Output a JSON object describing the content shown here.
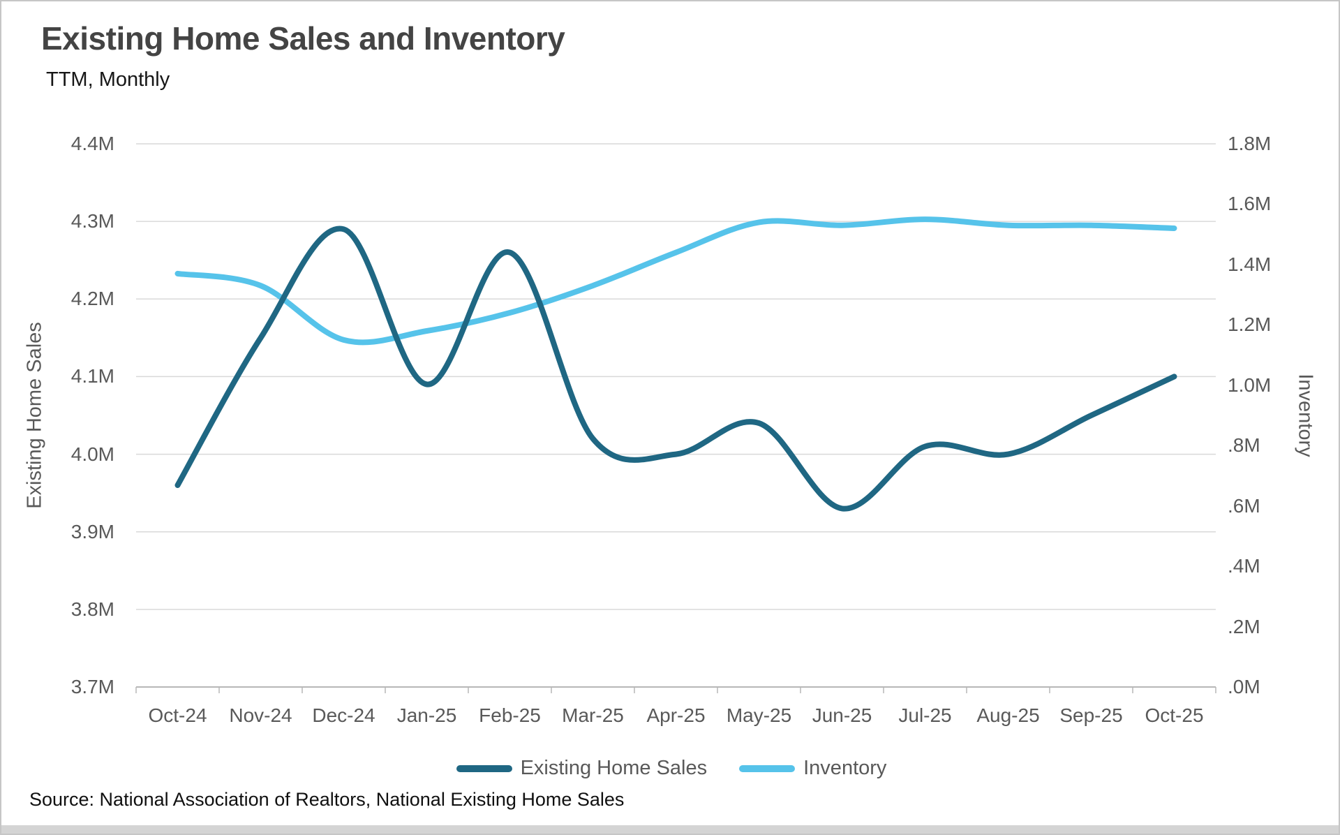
{
  "header": {
    "title": "Existing Home Sales and Inventory",
    "subtitle": "TTM, Monthly"
  },
  "chart_data": {
    "type": "line",
    "smooth": true,
    "grid": true,
    "legend_position": "bottom",
    "categories": [
      "Oct-24",
      "Nov-24",
      "Dec-24",
      "Jan-25",
      "Feb-25",
      "Mar-25",
      "Apr-25",
      "May-25",
      "Jun-25",
      "Jul-25",
      "Aug-25",
      "Sep-25",
      "Oct-25"
    ],
    "series": [
      {
        "name": "Existing Home Sales",
        "axis": "left",
        "color": "#1f6783",
        "values": [
          3.96,
          4.15,
          4.29,
          4.09,
          4.26,
          4.02,
          4.0,
          4.04,
          3.93,
          4.01,
          4.0,
          4.05,
          4.1
        ]
      },
      {
        "name": "Inventory",
        "axis": "right",
        "color": "#56c3ea",
        "values": [
          1.37,
          1.33,
          1.15,
          1.18,
          1.24,
          1.33,
          1.44,
          1.54,
          1.53,
          1.55,
          1.53,
          1.53,
          1.52
        ]
      }
    ],
    "left_axis": {
      "title": "Existing Home Sales",
      "min": 3.7,
      "max": 4.4,
      "tick_labels": [
        "4.4M",
        "4.3M",
        "4.2M",
        "4.1M",
        "4.0M",
        "3.9M",
        "3.8M",
        "3.7M"
      ]
    },
    "right_axis": {
      "title": "Inventory",
      "min": 0.0,
      "max": 1.8,
      "tick_labels": [
        "1.8M",
        "1.6M",
        "1.4M",
        "1.2M",
        "1.0M",
        ".8M",
        ".6M",
        ".4M",
        ".2M",
        ".0M"
      ]
    }
  },
  "legend": {
    "items": [
      {
        "label": "Existing Home Sales",
        "color": "#1f6783"
      },
      {
        "label": "Inventory",
        "color": "#56c3ea"
      }
    ]
  },
  "footer": {
    "source": "Source: National Association of Realtors, National Existing Home Sales"
  },
  "colors": {
    "gridline": "#d9d9d9",
    "axis_line": "#b7b7b7",
    "title_text": "#444444",
    "axis_text": "#595959",
    "series_dark": "#1f6783",
    "series_light": "#56c3ea"
  }
}
